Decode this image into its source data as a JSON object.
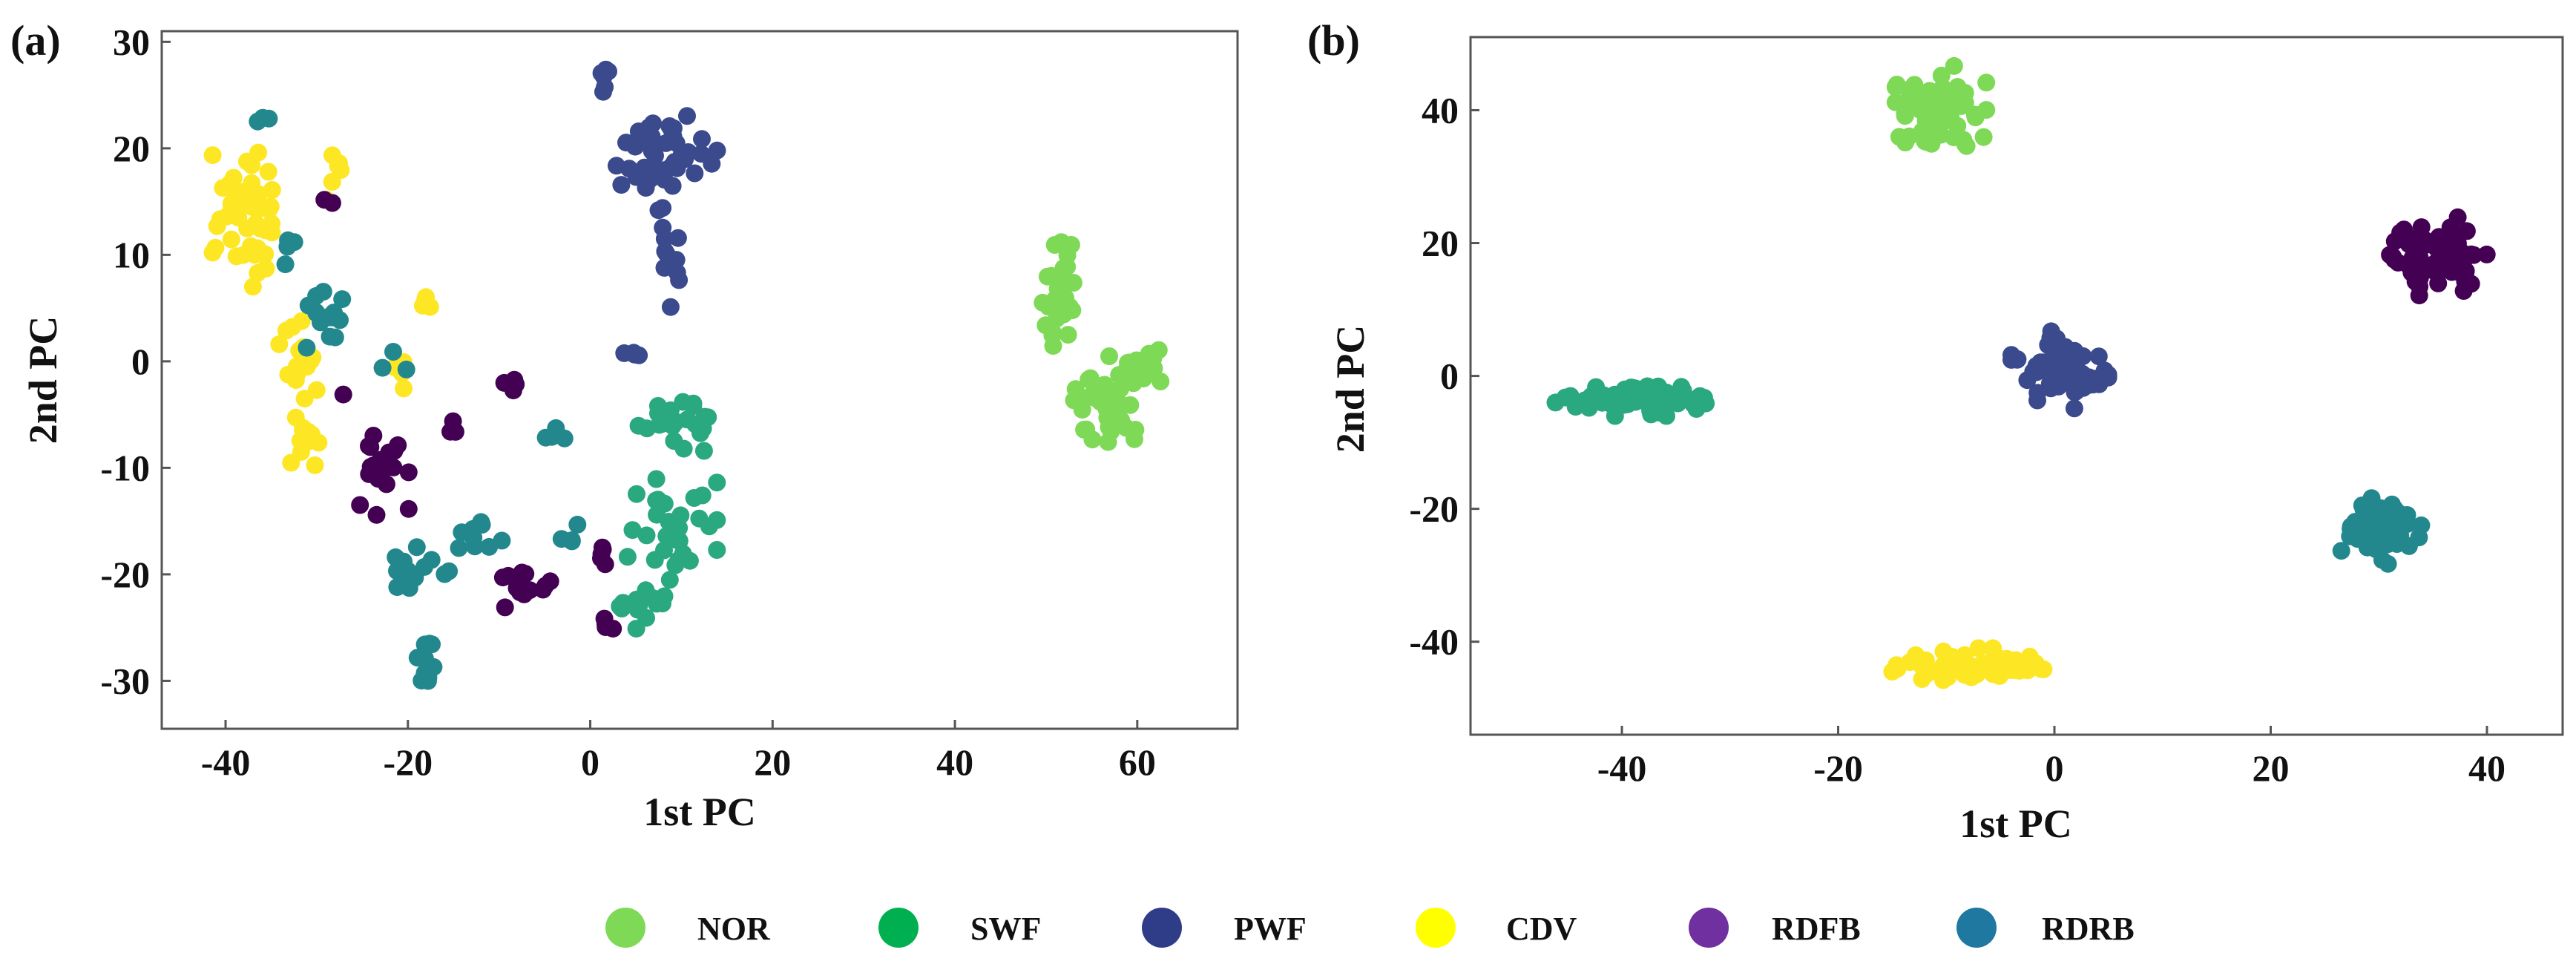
{
  "legend": [
    {
      "label": "NOR",
      "color": "#7ed957"
    },
    {
      "label": "SWF",
      "color": "#00b050"
    },
    {
      "label": "PWF",
      "color": "#2f3c87"
    },
    {
      "label": "CDV",
      "color": "#ffff00"
    },
    {
      "label": "RDFB",
      "color": "#7030a0"
    },
    {
      "label": "RDRB",
      "color": "#1f78a0"
    }
  ],
  "chart_data": [
    {
      "type": "scatter",
      "panel": "(a)",
      "xlabel": "1st  PC",
      "ylabel": "2nd  PC",
      "xlim": [
        -47,
        71
      ],
      "ylim": [
        -34.5,
        31
      ],
      "xticks": [
        -40,
        -20,
        0,
        20,
        40,
        60
      ],
      "yticks": [
        30,
        20,
        10,
        0,
        -10,
        -20,
        -30
      ],
      "xtick_labels": [
        "-40",
        "-20",
        "0",
        "20",
        "40",
        "60"
      ],
      "ytick_labels": [
        "30",
        "20",
        "10",
        "0",
        "-10",
        "-20",
        "-30"
      ],
      "series": [
        {
          "name": "NOR",
          "color": "#7ed957",
          "clusters": [
            {
              "center": [
                51.5,
                6
              ],
              "spread": [
                1.6,
                4.5
              ],
              "n": 35
            },
            {
              "center": [
                57,
                -4
              ],
              "spread": [
                3.2,
                3.2
              ],
              "n": 45
            },
            {
              "center": [
                61,
                -0.5
              ],
              "spread": [
                2.4,
                1.6
              ],
              "n": 20
            }
          ]
        },
        {
          "name": "SWF",
          "color": "#2aa87f",
          "clusters": [
            {
              "center": [
                9,
                -6
              ],
              "spread": [
                3,
                3
              ],
              "n": 22
            },
            {
              "center": [
                9,
                -16
              ],
              "spread": [
                3.5,
                4
              ],
              "n": 30
            },
            {
              "center": [
                6,
                -23
              ],
              "spread": [
                2.5,
                1.5
              ],
              "n": 12
            }
          ]
        },
        {
          "name": "PWF",
          "color": "#3a4a8c",
          "clusters": [
            {
              "center": [
                8,
                19
              ],
              "spread": [
                4.5,
                4
              ],
              "n": 45
            },
            {
              "center": [
                1.5,
                26.5
              ],
              "spread": [
                0.8,
                1.2
              ],
              "n": 6
            },
            {
              "center": [
                8,
                10
              ],
              "spread": [
                1.5,
                3.5
              ],
              "n": 10
            },
            {
              "center": [
                6,
                1
              ],
              "spread": [
                2,
                1
              ],
              "n": 4
            }
          ]
        },
        {
          "name": "CDV",
          "color": "#fde725",
          "clusters": [
            {
              "center": [
                -37.5,
                14
              ],
              "spread": [
                2.8,
                5
              ],
              "n": 55
            },
            {
              "center": [
                -32,
                1
              ],
              "spread": [
                2,
                3
              ],
              "n": 14
            },
            {
              "center": [
                -31,
                -7
              ],
              "spread": [
                1.5,
                2.5
              ],
              "n": 12
            },
            {
              "center": [
                -21,
                -1
              ],
              "spread": [
                1.2,
                1.5
              ],
              "n": 6
            },
            {
              "center": [
                -18,
                5
              ],
              "spread": [
                0.6,
                1.2
              ],
              "n": 4
            },
            {
              "center": [
                -28,
                18
              ],
              "spread": [
                1.5,
                3
              ],
              "n": 6
            }
          ]
        },
        {
          "name": "RDFB",
          "color": "#440154",
          "clusters": [
            {
              "center": [
                -23,
                -10.5
              ],
              "spread": [
                2.2,
                2.8
              ],
              "n": 22
            },
            {
              "center": [
                -7,
                -21
              ],
              "spread": [
                2.5,
                1.5
              ],
              "n": 14
            },
            {
              "center": [
                2,
                -25
              ],
              "spread": [
                1,
                0.6
              ],
              "n": 4
            },
            {
              "center": [
                1.5,
                -18
              ],
              "spread": [
                1,
                1
              ],
              "n": 5
            },
            {
              "center": [
                -9,
                -3
              ],
              "spread": [
                1,
                1
              ],
              "n": 4
            },
            {
              "center": [
                -15,
                -7
              ],
              "spread": [
                1.2,
                1.2
              ],
              "n": 3
            },
            {
              "center": [
                -29,
                15
              ],
              "spread": [
                1,
                1
              ],
              "n": 2
            },
            {
              "center": [
                -27,
                -3
              ],
              "spread": [
                0.5,
                0.5
              ],
              "n": 1
            }
          ]
        },
        {
          "name": "RDRB",
          "color": "#23888e",
          "clusters": [
            {
              "center": [
                -18,
                -28.5
              ],
              "spread": [
                0.8,
                2
              ],
              "n": 12
            },
            {
              "center": [
                -19,
                -19
              ],
              "spread": [
                2.5,
                2
              ],
              "n": 14
            },
            {
              "center": [
                -12,
                -17
              ],
              "spread": [
                2,
                1.5
              ],
              "n": 10
            },
            {
              "center": [
                -29,
                4
              ],
              "spread": [
                2,
                2.5
              ],
              "n": 14
            },
            {
              "center": [
                -33,
                11
              ],
              "spread": [
                1,
                1.5
              ],
              "n": 4
            },
            {
              "center": [
                -36,
                23
              ],
              "spread": [
                0.8,
                0.4
              ],
              "n": 3
            },
            {
              "center": [
                -2,
                -16
              ],
              "spread": [
                1.5,
                1.5
              ],
              "n": 4
            },
            {
              "center": [
                -3,
                -7
              ],
              "spread": [
                1.5,
                0.8
              ],
              "n": 4
            },
            {
              "center": [
                -22,
                0
              ],
              "spread": [
                1.5,
                1
              ],
              "n": 3
            }
          ]
        }
      ]
    },
    {
      "type": "scatter",
      "panel": "(b)",
      "xlabel": "1st  PC",
      "ylabel": "2nd  PC",
      "xlim": [
        -54,
        47
      ],
      "ylim": [
        -54,
        51
      ],
      "xticks": [
        -40,
        -20,
        0,
        20,
        40
      ],
      "yticks": [
        40,
        20,
        0,
        -20,
        -40
      ],
      "xtick_labels": [
        "-40",
        "-20",
        "0",
        "20",
        "40"
      ],
      "ytick_labels": [
        "40",
        "20",
        "0",
        "-20",
        "-40"
      ],
      "series": [
        {
          "name": "NOR",
          "color": "#7ed957",
          "clusters": [
            {
              "center": [
                -10.5,
                40
              ],
              "spread": [
                3,
                5
              ],
              "n": 75
            }
          ]
        },
        {
          "name": "SWF",
          "color": "#2aa87f",
          "clusters": [
            {
              "center": [
                -38.5,
                -3.5
              ],
              "spread": [
                5.5,
                1.8
              ],
              "n": 90
            }
          ]
        },
        {
          "name": "PWF",
          "color": "#3a4a8c",
          "clusters": [
            {
              "center": [
                0.5,
                1
              ],
              "spread": [
                3.2,
                4.2
              ],
              "n": 70
            }
          ]
        },
        {
          "name": "CDV",
          "color": "#fde725",
          "clusters": [
            {
              "center": [
                -8,
                -43.5
              ],
              "spread": [
                5,
                1.8
              ],
              "n": 75
            }
          ]
        },
        {
          "name": "RDFB",
          "color": "#440154",
          "clusters": [
            {
              "center": [
                35.5,
                18
              ],
              "spread": [
                3.2,
                4.2
              ],
              "n": 80
            }
          ]
        },
        {
          "name": "RDRB",
          "color": "#23888e",
          "clusters": [
            {
              "center": [
                30,
                -23
              ],
              "spread": [
                2.8,
                3.8
              ],
              "n": 75
            }
          ]
        }
      ]
    }
  ]
}
